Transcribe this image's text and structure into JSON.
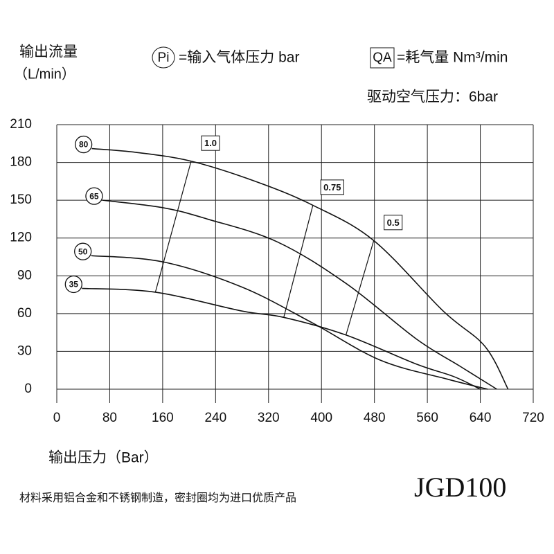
{
  "chart_data": {
    "type": "line",
    "y_label": "输出流量",
    "y_unit": "（L/min）",
    "x_label": "输出压力（Bar）",
    "legend_items": [
      {
        "symbol": "Pi",
        "text": "=输入气体压力 bar"
      },
      {
        "symbol": "QA",
        "text": "=耗气量 Nm³/min"
      }
    ],
    "note": "驱动空气压力：6bar",
    "footer": "材料采用铝合金和不锈钢制造，密封圈均为进口优质产品",
    "model": "JGD100",
    "xlim": [
      0,
      720
    ],
    "xticks": [
      0,
      80,
      160,
      240,
      320,
      400,
      480,
      560,
      640,
      720
    ],
    "ylim": [
      0,
      210
    ],
    "yticks": [
      0,
      30,
      60,
      90,
      120,
      150,
      180,
      210
    ],
    "grid": true,
    "color": "#111111",
    "series": [
      {
        "name": "80",
        "x": [
          53,
          120,
          203,
          300,
          387,
          479,
          584,
          647,
          682
        ],
        "values": [
          191,
          188,
          181,
          165,
          146,
          118,
          62,
          34,
          0
        ]
      },
      {
        "name": "65",
        "x": [
          69,
          161,
          228,
          333,
          437,
          543,
          610,
          665
        ],
        "values": [
          150,
          144,
          135,
          117,
          84,
          40,
          18,
          0
        ]
      },
      {
        "name": "50",
        "x": [
          52,
          161,
          280,
          385,
          489,
          590,
          651
        ],
        "values": [
          106,
          101,
          81,
          53,
          23,
          8,
          0
        ]
      },
      {
        "name": "35",
        "x": [
          38,
          149,
          280,
          343,
          437,
          543,
          600,
          640
        ],
        "values": [
          80,
          77,
          62,
          57,
          43,
          20,
          10,
          0
        ]
      }
    ],
    "qa_lines": [
      {
        "name": "1.0",
        "x": [
          203,
          149
        ],
        "values": [
          181,
          77
        ]
      },
      {
        "name": "0.75",
        "x": [
          387,
          343
        ],
        "values": [
          146,
          57
        ]
      },
      {
        "name": "0.5",
        "x": [
          479,
          437
        ],
        "values": [
          118,
          43
        ]
      }
    ]
  }
}
